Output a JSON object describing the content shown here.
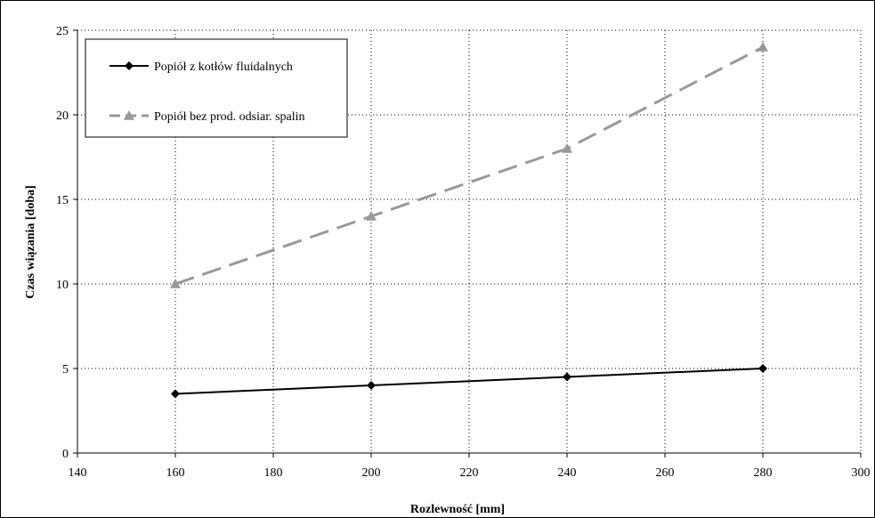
{
  "chart_data": {
    "type": "line",
    "title": "",
    "xlabel": "Rozlewność   [mm]",
    "ylabel": "Czas wiązania [doba]",
    "xlim": [
      140,
      300
    ],
    "ylim": [
      0,
      25
    ],
    "x_ticks": [
      140,
      160,
      180,
      200,
      220,
      240,
      260,
      280,
      300
    ],
    "y_ticks": [
      0,
      5,
      10,
      15,
      20,
      25
    ],
    "grid": true,
    "legend_position": "top-left",
    "series": [
      {
        "name": "Popiół z kotłów fluidalnych",
        "x": [
          160,
          200,
          240,
          280
        ],
        "y": [
          3.5,
          4,
          4.5,
          5
        ],
        "color": "#000000",
        "marker": "diamond",
        "line_style": "solid"
      },
      {
        "name": "Popiół bez prod. odsiar. spalin",
        "x": [
          160,
          200,
          240,
          280
        ],
        "y": [
          10,
          14,
          18,
          24
        ],
        "color": "#999999",
        "marker": "triangle",
        "line_style": "dashed"
      }
    ]
  }
}
